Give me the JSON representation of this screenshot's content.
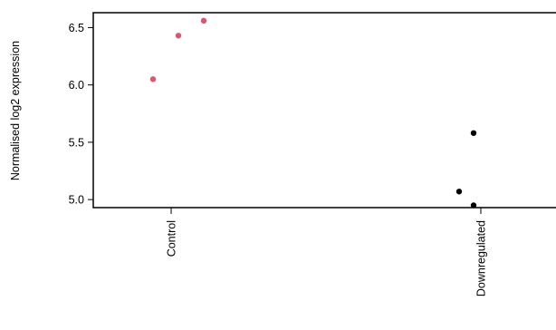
{
  "chart_data": {
    "type": "scatter",
    "title": "",
    "xlabel": "",
    "ylabel": "Normalised log2 expression",
    "categories": [
      "Control",
      "Downregulated"
    ],
    "yticks": [
      "5.0",
      "5.5",
      "6.0",
      "6.5"
    ],
    "ytick_values": [
      5.0,
      5.5,
      6.0,
      6.5
    ],
    "ylim": [
      4.93,
      6.63
    ],
    "grid": false,
    "legend": "none",
    "series": [
      {
        "category": "Control",
        "color": "#DF536B",
        "points": [
          {
            "jitter": -0.05,
            "y": 6.05
          },
          {
            "jitter": 0.02,
            "y": 6.43
          },
          {
            "jitter": 0.09,
            "y": 6.56
          }
        ]
      },
      {
        "category": "Downregulated",
        "color": "#000000",
        "points": [
          {
            "jitter": -0.06,
            "y": 5.07
          },
          {
            "jitter": -0.02,
            "y": 4.95
          },
          {
            "jitter": -0.02,
            "y": 5.58
          }
        ]
      }
    ]
  }
}
